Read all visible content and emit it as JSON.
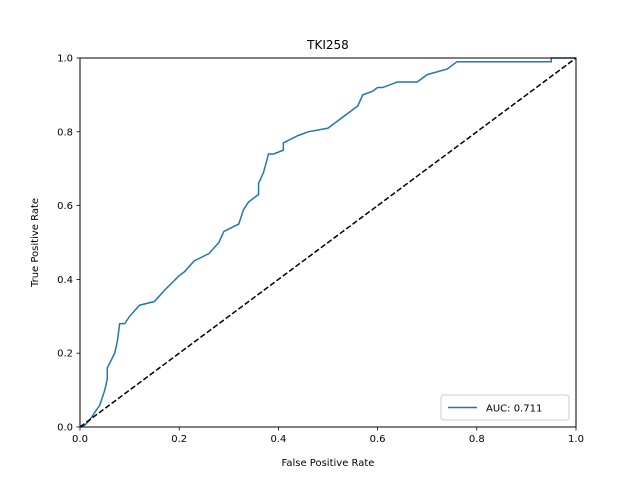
{
  "chart_data": {
    "type": "line",
    "title": "TKI258",
    "xlabel": "False Positive Rate",
    "ylabel": "True Positive Rate",
    "xlim": [
      0.0,
      1.0
    ],
    "ylim": [
      0.0,
      1.0
    ],
    "xticks": [
      "0.0",
      "0.2",
      "0.4",
      "0.6",
      "0.8",
      "1.0"
    ],
    "yticks": [
      "0.0",
      "0.2",
      "0.4",
      "0.6",
      "0.8",
      "1.0"
    ],
    "grid": false,
    "legend_position": "lower-right",
    "series": [
      {
        "name": "AUC: 0.711",
        "color": "#1f77b4",
        "style": "solid",
        "x": [
          0.0,
          0.01,
          0.02,
          0.03,
          0.04,
          0.05,
          0.055,
          0.055,
          0.07,
          0.075,
          0.08,
          0.09,
          0.1,
          0.12,
          0.15,
          0.17,
          0.2,
          0.21,
          0.23,
          0.26,
          0.28,
          0.29,
          0.32,
          0.33,
          0.34,
          0.36,
          0.36,
          0.37,
          0.38,
          0.39,
          0.41,
          0.41,
          0.44,
          0.46,
          0.5,
          0.52,
          0.55,
          0.56,
          0.57,
          0.59,
          0.6,
          0.61,
          0.64,
          0.68,
          0.7,
          0.74,
          0.76,
          0.95,
          0.95,
          1.0
        ],
        "y": [
          0.0,
          0.005,
          0.02,
          0.04,
          0.06,
          0.1,
          0.13,
          0.16,
          0.2,
          0.23,
          0.28,
          0.28,
          0.3,
          0.33,
          0.34,
          0.37,
          0.41,
          0.42,
          0.45,
          0.47,
          0.5,
          0.53,
          0.55,
          0.59,
          0.61,
          0.63,
          0.66,
          0.69,
          0.74,
          0.74,
          0.75,
          0.77,
          0.79,
          0.8,
          0.81,
          0.83,
          0.86,
          0.87,
          0.9,
          0.91,
          0.92,
          0.92,
          0.935,
          0.935,
          0.955,
          0.97,
          0.99,
          0.99,
          1.0,
          1.0
        ]
      },
      {
        "name": "",
        "color": "#000000",
        "style": "dashed",
        "x": [
          0.0,
          1.0
        ],
        "y": [
          0.0,
          1.0
        ]
      }
    ]
  }
}
